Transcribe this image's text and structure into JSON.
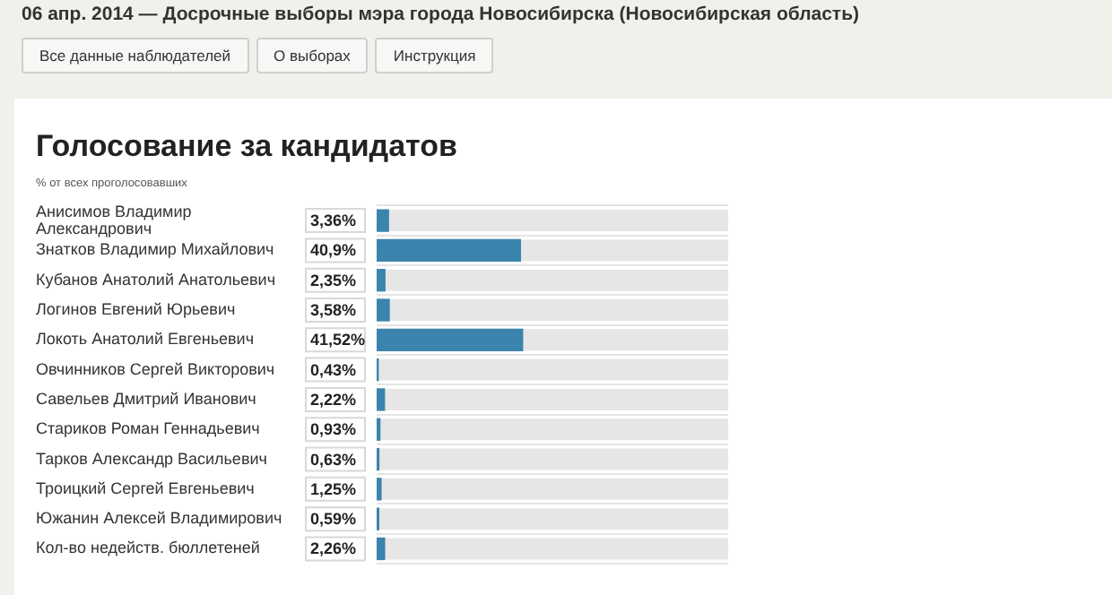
{
  "chart_data": {
    "type": "bar",
    "orientation": "horizontal",
    "title": "Голосование за кандидатов",
    "subtitle": "% от всех проголосовавших",
    "annotations": [
      "06 апр. 2014 — Досрочные выборы мэра города Новосибирска (Новосибирская область)",
      "Все данные наблюдателей",
      "О выборах",
      "Инструкция"
    ],
    "categories": [
      "Анисимов Владимир Александрович",
      "Знатков Владимир Михайлович",
      "Кубанов Анатолий Анатольевич",
      "Логинов Евгений Юрьевич",
      "Локоть Анатолий Евгеньевич",
      "Овчинников Сергей Викторович",
      "Савельев Дмитрий Иванович",
      "Стариков Роман Геннадьевич",
      "Тарков Александр Васильевич",
      "Троицкий Сергей Евгеньевич",
      "Южанин Алексей Владимирович",
      "Кол-во недейств. бюллетеней"
    ],
    "values": [
      3.36,
      40.9,
      2.35,
      3.58,
      41.52,
      0.43,
      2.22,
      0.93,
      0.63,
      1.25,
      0.59,
      2.26
    ],
    "value_labels": [
      "3,36%",
      "40,9%",
      "2,35%",
      "3,58%",
      "41,52%",
      "0,43%",
      "2,22%",
      "0,93%",
      "0,63%",
      "1,25%",
      "0,59%",
      "2,26%"
    ],
    "color": "#3a84ad",
    "xlim": [
      0,
      100
    ],
    "tick_labels": "y",
    "grid": "y",
    "legend": false
  }
}
